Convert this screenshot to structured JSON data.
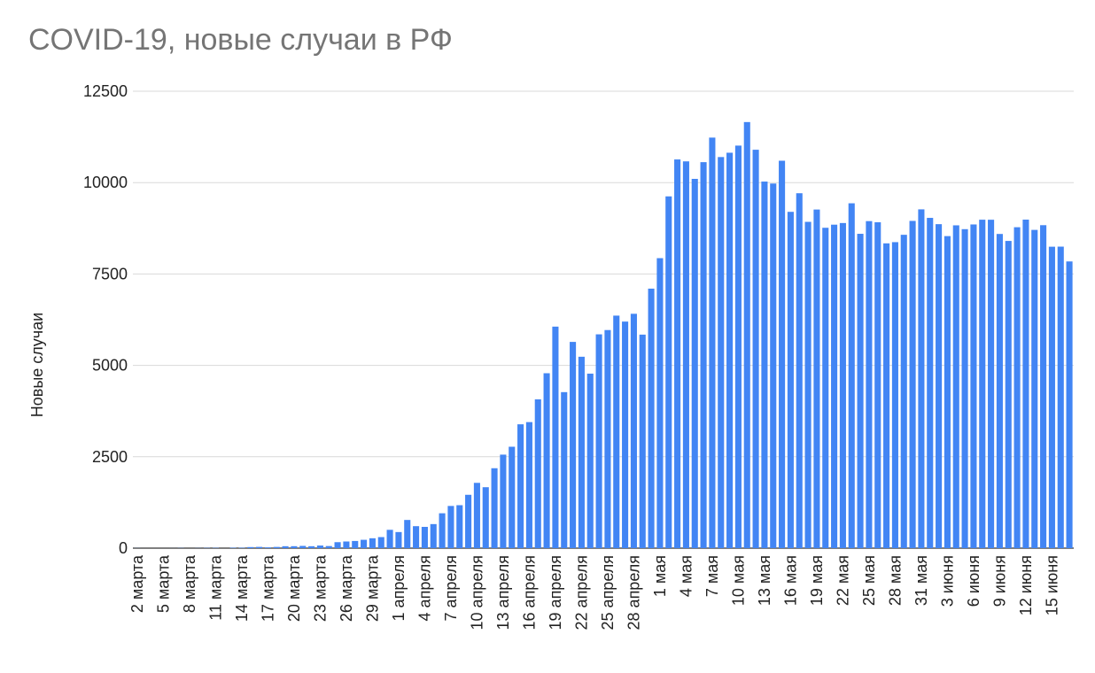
{
  "chart_data": {
    "type": "bar",
    "title": "COVID-19, новые случаи в РФ",
    "xlabel": "",
    "ylabel": "Новые случаи",
    "ylim": [
      0,
      12500
    ],
    "yticks": [
      0,
      2500,
      5000,
      7500,
      10000,
      12500
    ],
    "grid": true,
    "legend": "none",
    "colors": {
      "bar": "#4285f4",
      "grid": "#d9d9d9",
      "title": "#757575",
      "text": "#222222"
    },
    "categories": [
      "2 марта",
      "3 марта",
      "4 марта",
      "5 марта",
      "6 марта",
      "7 марта",
      "8 марта",
      "9 марта",
      "10 марта",
      "11 марта",
      "12 марта",
      "13 марта",
      "14 марта",
      "15 марта",
      "16 марта",
      "17 марта",
      "18 марта",
      "19 марта",
      "20 марта",
      "21 марта",
      "22 марта",
      "23 марта",
      "24 марта",
      "25 марта",
      "26 марта",
      "27 марта",
      "28 марта",
      "29 марта",
      "30 марта",
      "31 марта",
      "1 апреля",
      "2 апреля",
      "3 апреля",
      "4 апреля",
      "5 апреля",
      "6 апреля",
      "7 апреля",
      "8 апреля",
      "9 апреля",
      "10 апреля",
      "11 апреля",
      "12 апреля",
      "13 апреля",
      "14 апреля",
      "15 апреля",
      "16 апреля",
      "17 апреля",
      "18 апреля",
      "19 апреля",
      "20 апреля",
      "21 апреля",
      "22 апреля",
      "23 апреля",
      "24 апреля",
      "25 апреля",
      "26 апреля",
      "27 апреля",
      "28 апреля",
      "29 апреля",
      "30 апреля",
      "1 мая",
      "2 мая",
      "3 мая",
      "4 мая",
      "5 мая",
      "6 мая",
      "7 мая",
      "8 мая",
      "9 мая",
      "10 мая",
      "11 мая",
      "12 мая",
      "13 мая",
      "14 мая",
      "15 мая",
      "16 мая",
      "17 мая",
      "18 мая",
      "19 мая",
      "20 мая",
      "21 мая",
      "22 мая",
      "23 мая",
      "24 мая",
      "25 мая",
      "26 мая",
      "27 мая",
      "28 мая",
      "29 мая",
      "30 мая",
      "31 мая",
      "1 июня",
      "2 июня",
      "3 июня",
      "4 июня",
      "5 июня",
      "6 июня",
      "7 июня",
      "8 июня",
      "9 июня",
      "10 июня",
      "11 июня",
      "12 июня",
      "13 июня",
      "14 июня",
      "15 июня",
      "16 июня",
      "17 июня"
    ],
    "tick_labels": [
      "2 марта",
      "5 марта",
      "8 марта",
      "11 марта",
      "14 марта",
      "17 марта",
      "20 марта",
      "23 марта",
      "26 марта",
      "29 марта",
      "1 апреля",
      "4 апреля",
      "7 апреля",
      "10 апреля",
      "13 апреля",
      "16 апреля",
      "19 апреля",
      "22 апреля",
      "25 апреля",
      "28 апреля",
      "1 мая",
      "4 мая",
      "7 мая",
      "10 мая",
      "13 мая",
      "16 мая",
      "19 мая",
      "22 мая",
      "25 мая",
      "28 мая",
      "31 мая",
      "3 июня",
      "6 июня",
      "9 июня",
      "12 июня",
      "15 июня"
    ],
    "values": [
      2,
      0,
      0,
      0,
      1,
      4,
      0,
      3,
      7,
      8,
      0,
      11,
      11,
      29,
      34,
      21,
      33,
      52,
      53,
      61,
      52,
      71,
      57,
      163,
      182,
      196,
      228,
      270,
      302,
      501,
      440,
      771,
      601,
      582,
      658,
      954,
      1154,
      1175,
      1459,
      1786,
      1667,
      2186,
      2558,
      2774,
      3388,
      3448,
      4070,
      4785,
      6060,
      4268,
      5642,
      5236,
      4774,
      5849,
      5966,
      6361,
      6198,
      6411,
      5841,
      7099,
      7933,
      9623,
      10633,
      10581,
      10102,
      10559,
      11231,
      10699,
      10817,
      11012,
      11656,
      10899,
      10028,
      9974,
      10598,
      9200,
      9709,
      8926,
      9263,
      8764,
      8849,
      8894,
      9434,
      8599,
      8946,
      8915,
      8338,
      8371,
      8572,
      8952,
      9268,
      9035,
      8863,
      8536,
      8831,
      8726,
      8855,
      8985,
      8984,
      8595,
      8404,
      8779,
      8987,
      8706,
      8835,
      8246,
      8248,
      7843
    ]
  }
}
